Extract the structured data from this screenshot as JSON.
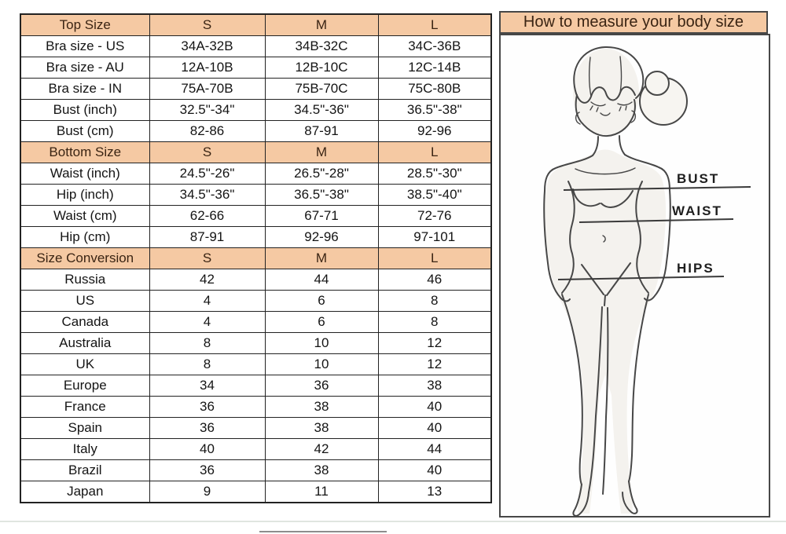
{
  "chart_data": {
    "type": "table",
    "columns": [
      "S",
      "M",
      "L"
    ],
    "sections": [
      {
        "header": "Top Size",
        "rows": [
          {
            "label": "Bra size - US",
            "values": [
              "34A-32B",
              "34B-32C",
              "34C-36B"
            ]
          },
          {
            "label": "Bra size - AU",
            "values": [
              "12A-10B",
              "12B-10C",
              "12C-14B"
            ]
          },
          {
            "label": "Bra size - IN",
            "values": [
              "75A-70B",
              "75B-70C",
              "75C-80B"
            ]
          },
          {
            "label": "Bust (inch)",
            "values": [
              "32.5\"-34\"",
              "34.5\"-36\"",
              "36.5\"-38\""
            ]
          },
          {
            "label": "Bust (cm)",
            "values": [
              "82-86",
              "87-91",
              "92-96"
            ]
          }
        ]
      },
      {
        "header": "Bottom Size",
        "rows": [
          {
            "label": "Waist (inch)",
            "values": [
              "24.5\"-26\"",
              "26.5\"-28\"",
              "28.5\"-30\""
            ]
          },
          {
            "label": "Hip (inch)",
            "values": [
              "34.5\"-36\"",
              "36.5\"-38\"",
              "38.5\"-40\""
            ]
          },
          {
            "label": "Waist (cm)",
            "values": [
              "62-66",
              "67-71",
              "72-76"
            ]
          },
          {
            "label": "Hip (cm)",
            "values": [
              "87-91",
              "92-96",
              "97-101"
            ]
          }
        ]
      },
      {
        "header": "Size Conversion",
        "rows": [
          {
            "label": "Russia",
            "values": [
              "42",
              "44",
              "46"
            ]
          },
          {
            "label": "US",
            "values": [
              "4",
              "6",
              "8"
            ]
          },
          {
            "label": "Canada",
            "values": [
              "4",
              "6",
              "8"
            ]
          },
          {
            "label": "Australia",
            "values": [
              "8",
              "10",
              "12"
            ]
          },
          {
            "label": "UK",
            "values": [
              "8",
              "10",
              "12"
            ]
          },
          {
            "label": "Europe",
            "values": [
              "34",
              "36",
              "38"
            ]
          },
          {
            "label": "France",
            "values": [
              "36",
              "38",
              "40"
            ]
          },
          {
            "label": "Spain",
            "values": [
              "36",
              "38",
              "40"
            ]
          },
          {
            "label": "Italy",
            "values": [
              "40",
              "42",
              "44"
            ]
          },
          {
            "label": "Brazil",
            "values": [
              "36",
              "38",
              "40"
            ]
          },
          {
            "label": "Japan",
            "values": [
              "9",
              "11",
              "13"
            ]
          }
        ]
      }
    ]
  },
  "measure_panel": {
    "title": "How to measure your body size",
    "labels": {
      "bust": "BUST",
      "waist": "WAIST",
      "hips": "HIPS"
    }
  },
  "colors": {
    "header_bg": "#f5c9a3",
    "header_text": "#3a2413",
    "cell_text": "#141414",
    "border": "#222222",
    "panel_border": "#474747",
    "sketch_line": "#474747"
  }
}
